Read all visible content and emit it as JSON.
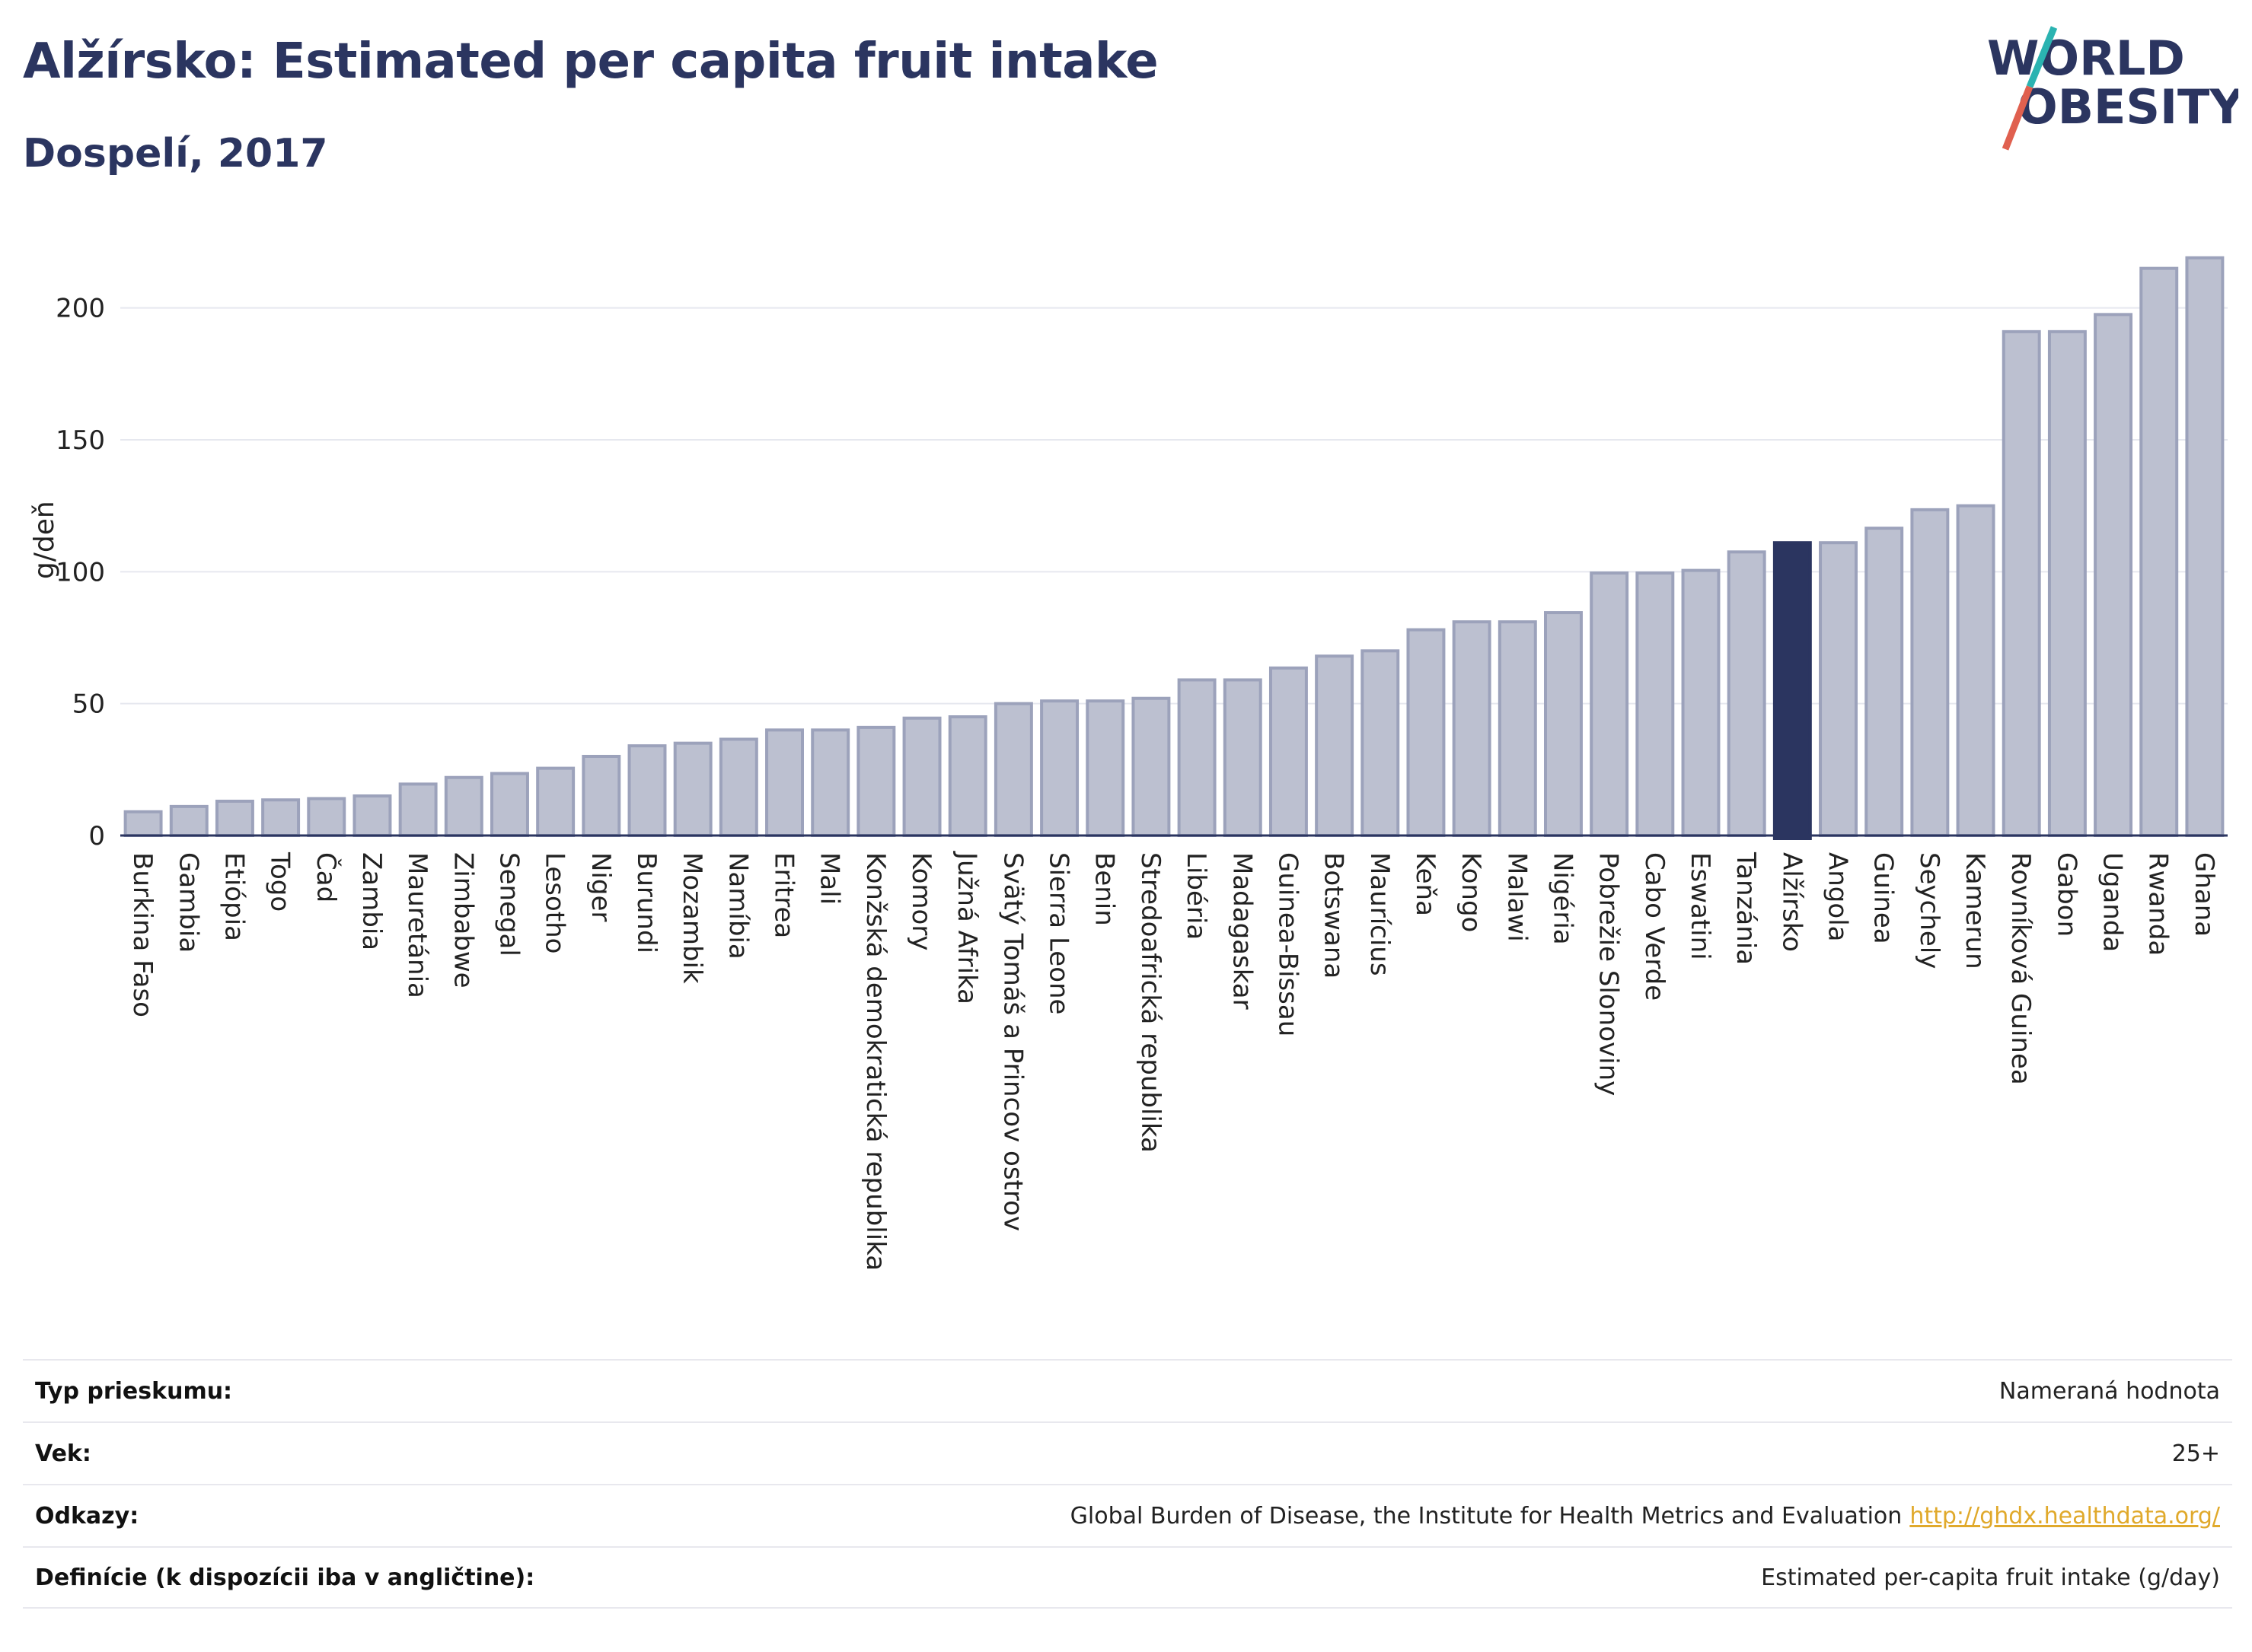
{
  "header": {
    "title": "Alžírsko: Estimated per capita fruit intake",
    "subtitle": "Dospelí, 2017"
  },
  "logo": {
    "line1": "WORLD",
    "line2": "OBESITY",
    "colors": {
      "text": "#2b3560",
      "slash_teal": "#2bb3b1",
      "slash_red": "#e0604f"
    }
  },
  "chart_data": {
    "type": "bar",
    "ylabel": "g/deň",
    "ylim": [
      0,
      225
    ],
    "yticks": [
      0,
      50,
      100,
      150,
      200
    ],
    "grid": true,
    "highlight": "Alžírsko",
    "colors": {
      "bar": "#bcc0d0",
      "bar_border": "#9ca2bb",
      "highlight": "#2b3560"
    },
    "categories": [
      "Burkina Faso",
      "Gambia",
      "Etiópia",
      "Togo",
      "Čad",
      "Zambia",
      "Mauretánia",
      "Zimbabwe",
      "Senegal",
      "Lesotho",
      "Niger",
      "Burundi",
      "Mozambik",
      "Namíbia",
      "Eritrea",
      "Mali",
      "Konžská demokratická republika",
      "Komory",
      "Južná Afrika",
      "Svätý Tomáš a Princov ostrov",
      "Sierra Leone",
      "Benin",
      "Stredoafrická republika",
      "Libéria",
      "Madagaskar",
      "Guinea-Bissau",
      "Botswana",
      "Maurícius",
      "Keňa",
      "Kongo",
      "Malawi",
      "Nigéria",
      "Pobrežie Slonoviny",
      "Cabo Verde",
      "Eswatini",
      "Tanzánia",
      "Alžírsko",
      "Angola",
      "Guinea",
      "Seychely",
      "Kamerun",
      "Rovníková Guinea",
      "Gabon",
      "Uganda",
      "Rwanda",
      "Ghana"
    ],
    "values": [
      9,
      11,
      13,
      13.5,
      14,
      15,
      19.5,
      22,
      23.5,
      25.5,
      30,
      34,
      35,
      36.5,
      40,
      40,
      41,
      44.5,
      45,
      50,
      51,
      51,
      52,
      59,
      59,
      63.5,
      68,
      70,
      78,
      81,
      81,
      84.5,
      99.5,
      99.5,
      100.5,
      107.5,
      111,
      111,
      116.5,
      123.5,
      125,
      191,
      191,
      197.5,
      215,
      219
    ]
  },
  "meta": {
    "rows": [
      {
        "label": "Typ prieskumu:",
        "value": "Nameraná hodnota",
        "link": ""
      },
      {
        "label": "Vek:",
        "value": "25+",
        "link": ""
      },
      {
        "label": "Odkazy:",
        "value": "Global Burden of Disease, the Institute for Health Metrics and Evaluation",
        "link": "http://ghdx.healthdata.org/"
      },
      {
        "label": "Definície (k dispozícii iba v angličtine):",
        "value": "Estimated per-capita fruit intake (g/day)",
        "link": ""
      }
    ]
  }
}
